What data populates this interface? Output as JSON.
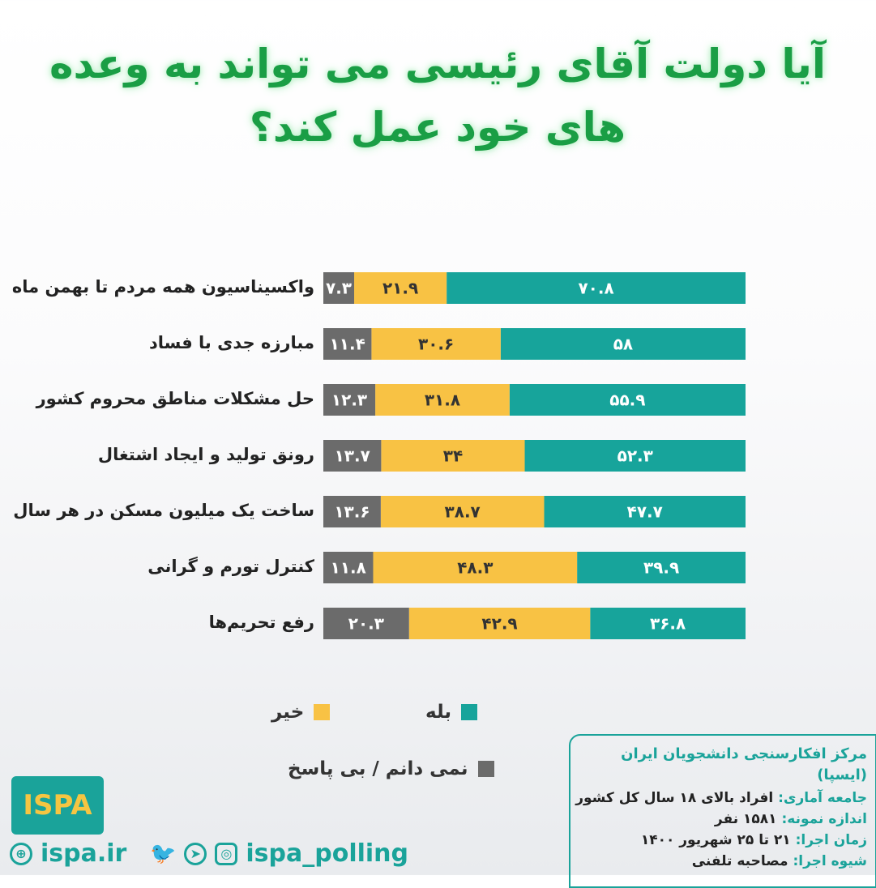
{
  "title": "آیا دولت آقای رئیسی می تواند به وعده های خود عمل کند؟",
  "chart_data": {
    "type": "bar",
    "orientation": "horizontal",
    "stacked": true,
    "categories": [
      "واکسیناسیون همه مردم تا بهمن ماه",
      "مبارزه جدی با فساد",
      "حل مشکلات مناطق محروم کشور",
      "رونق تولید و ایجاد اشتغال",
      "ساخت یک میلیون مسکن در هر سال",
      "کنترل تورم و گرانی",
      "رفع تحریم‌ها"
    ],
    "series": [
      {
        "name": "بله",
        "color": "#17a49b",
        "values": [
          70.8,
          58,
          55.9,
          52.3,
          47.7,
          39.9,
          36.8
        ]
      },
      {
        "name": "خیر",
        "color": "#f8c244",
        "values": [
          21.9,
          30.6,
          31.8,
          34,
          38.7,
          48.3,
          42.9
        ]
      },
      {
        "name": "نمی دانم / بی پاسخ",
        "color": "#6b6b6b",
        "values": [
          7.3,
          11.4,
          12.3,
          13.7,
          13.6,
          11.8,
          20.3
        ]
      }
    ],
    "xlim": [
      0,
      100
    ],
    "legend": "bottom",
    "grid": false,
    "direction": "right-to-left"
  },
  "info": {
    "org": "مرکز افکارسنجی دانشجویان ایران (ایسپا)",
    "rows": [
      {
        "k": "جامعه آماری:",
        "v": "افراد بالای ۱۸ سال کل کشور"
      },
      {
        "k": "اندازه نمونه:",
        "v": "۱۵۸۱ نفر"
      },
      {
        "k": "زمان اجرا:",
        "v": "۲۱ تا ۲۵ شهریور ۱۴۰۰"
      },
      {
        "k": "شیوه اجرا:",
        "v": "مصاحبه تلفنی"
      }
    ]
  },
  "logo_text": "ISPA ایسپا",
  "website": "ispa.ir",
  "handle": "ispa_polling"
}
